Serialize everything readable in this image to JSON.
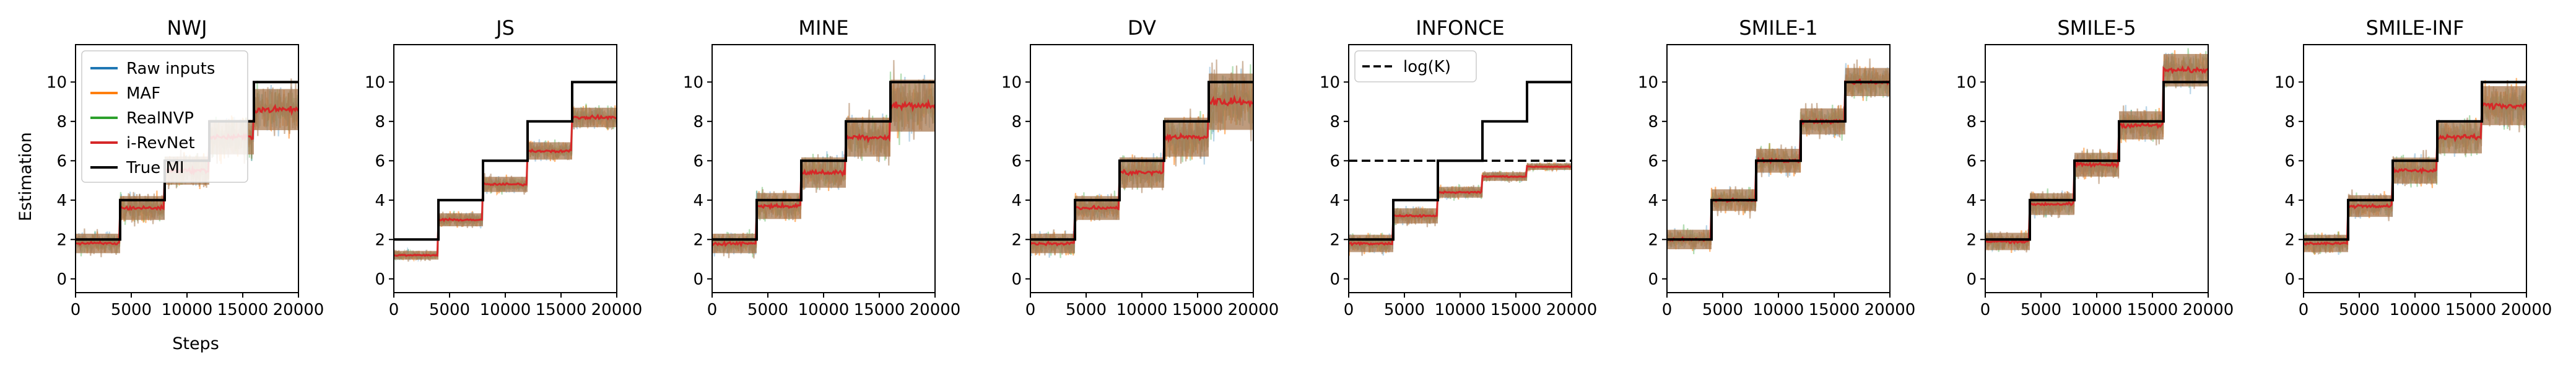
{
  "figure": {
    "ylabel": "Estimation",
    "xlabel": "Steps"
  },
  "colors": {
    "raw": "#1f77b4",
    "maf": "#ff7f0e",
    "realnvp": "#2ca02c",
    "irevnet": "#d62728",
    "true": "#000000",
    "band": "#a87a52"
  },
  "legend": {
    "entries": [
      {
        "label": "Raw inputs",
        "color": "#1f77b4"
      },
      {
        "label": "MAF",
        "color": "#ff7f0e"
      },
      {
        "label": "RealNVP",
        "color": "#2ca02c"
      },
      {
        "label": "i-RevNet",
        "color": "#d62728"
      },
      {
        "label": "True MI",
        "color": "#000000"
      }
    ],
    "infonce_entry": "log(K)"
  },
  "chart_data": [
    {
      "type": "line",
      "title": "NWJ",
      "xlim": [
        0,
        20000
      ],
      "ylim": [
        -0.7,
        11.9
      ],
      "xticks": [
        "0",
        "5000",
        "10000",
        "15000",
        "20000"
      ],
      "yticks": [
        "0",
        "2",
        "4",
        "6",
        "8",
        "10"
      ],
      "true_mi": [
        2,
        4,
        6,
        8,
        10
      ],
      "mean": [
        1.8,
        3.6,
        5.5,
        7.2,
        8.6
      ],
      "band": [
        0.9,
        1.1,
        1.3,
        1.6,
        1.9
      ]
    },
    {
      "type": "line",
      "title": "JS",
      "xlim": [
        0,
        20000
      ],
      "ylim": [
        -0.7,
        11.9
      ],
      "xticks": [
        "0",
        "5000",
        "10000",
        "15000",
        "20000"
      ],
      "yticks": [
        "0",
        "2",
        "4",
        "6",
        "8",
        "10"
      ],
      "true_mi": [
        2,
        4,
        6,
        8,
        10
      ],
      "mean": [
        1.2,
        3.0,
        4.8,
        6.5,
        8.2
      ],
      "band": [
        0.4,
        0.6,
        0.7,
        0.8,
        0.9
      ]
    },
    {
      "type": "line",
      "title": "MINE",
      "xlim": [
        0,
        20000
      ],
      "ylim": [
        -0.7,
        11.9
      ],
      "xticks": [
        "0",
        "5000",
        "10000",
        "15000",
        "20000"
      ],
      "yticks": [
        "0",
        "2",
        "4",
        "6",
        "8",
        "10"
      ],
      "true_mi": [
        2,
        4,
        6,
        8,
        10
      ],
      "mean": [
        1.8,
        3.7,
        5.4,
        7.2,
        8.8
      ],
      "band": [
        0.9,
        1.2,
        1.4,
        1.8,
        2.4
      ]
    },
    {
      "type": "line",
      "title": "DV",
      "xlim": [
        0,
        20000
      ],
      "ylim": [
        -0.7,
        11.9
      ],
      "xticks": [
        "0",
        "5000",
        "10000",
        "15000",
        "20000"
      ],
      "yticks": [
        "0",
        "2",
        "4",
        "6",
        "8",
        "10"
      ],
      "true_mi": [
        2,
        4,
        6,
        8,
        10
      ],
      "mean": [
        1.8,
        3.6,
        5.4,
        7.2,
        9.0
      ],
      "band": [
        0.9,
        1.1,
        1.4,
        1.8,
        2.6
      ]
    },
    {
      "type": "line",
      "title": "INFONCE",
      "xlim": [
        0,
        20000
      ],
      "ylim": [
        -0.7,
        11.9
      ],
      "xticks": [
        "0",
        "5000",
        "10000",
        "15000",
        "20000"
      ],
      "yticks": [
        "0",
        "2",
        "4",
        "6",
        "8",
        "10"
      ],
      "true_mi": [
        2,
        4,
        6,
        8,
        10
      ],
      "mean": [
        1.8,
        3.2,
        4.4,
        5.2,
        5.7
      ],
      "band": [
        0.8,
        0.7,
        0.5,
        0.4,
        0.3
      ],
      "logk": 6
    },
    {
      "type": "line",
      "title": "SMILE-1",
      "xlim": [
        0,
        20000
      ],
      "ylim": [
        -0.7,
        11.9
      ],
      "xticks": [
        "0",
        "5000",
        "10000",
        "15000",
        "20000"
      ],
      "yticks": [
        "0",
        "2",
        "4",
        "6",
        "8",
        "10"
      ],
      "true_mi": [
        2,
        4,
        6,
        8,
        10
      ],
      "mean": [
        2.0,
        4.0,
        6.0,
        8.0,
        10.0
      ],
      "band": [
        0.9,
        1.0,
        1.1,
        1.2,
        1.3
      ]
    },
    {
      "type": "line",
      "title": "SMILE-5",
      "xlim": [
        0,
        20000
      ],
      "ylim": [
        -0.7,
        11.9
      ],
      "xticks": [
        "0",
        "5000",
        "10000",
        "15000",
        "20000"
      ],
      "yticks": [
        "0",
        "2",
        "4",
        "6",
        "8",
        "10"
      ],
      "true_mi": [
        2,
        4,
        6,
        8,
        10
      ],
      "mean": [
        1.9,
        3.8,
        5.8,
        7.8,
        10.6
      ],
      "band": [
        0.8,
        1.0,
        1.1,
        1.3,
        1.5
      ]
    },
    {
      "type": "line",
      "title": "SMILE-INF",
      "xlim": [
        0,
        20000
      ],
      "ylim": [
        -0.7,
        11.9
      ],
      "xticks": [
        "0",
        "5000",
        "10000",
        "15000",
        "20000"
      ],
      "yticks": [
        "0",
        "2",
        "4",
        "6",
        "8",
        "10"
      ],
      "true_mi": [
        2,
        4,
        6,
        8,
        10
      ],
      "mean": [
        1.8,
        3.7,
        5.5,
        7.2,
        8.8
      ],
      "band": [
        0.8,
        1.0,
        1.2,
        1.5,
        1.8
      ]
    }
  ]
}
